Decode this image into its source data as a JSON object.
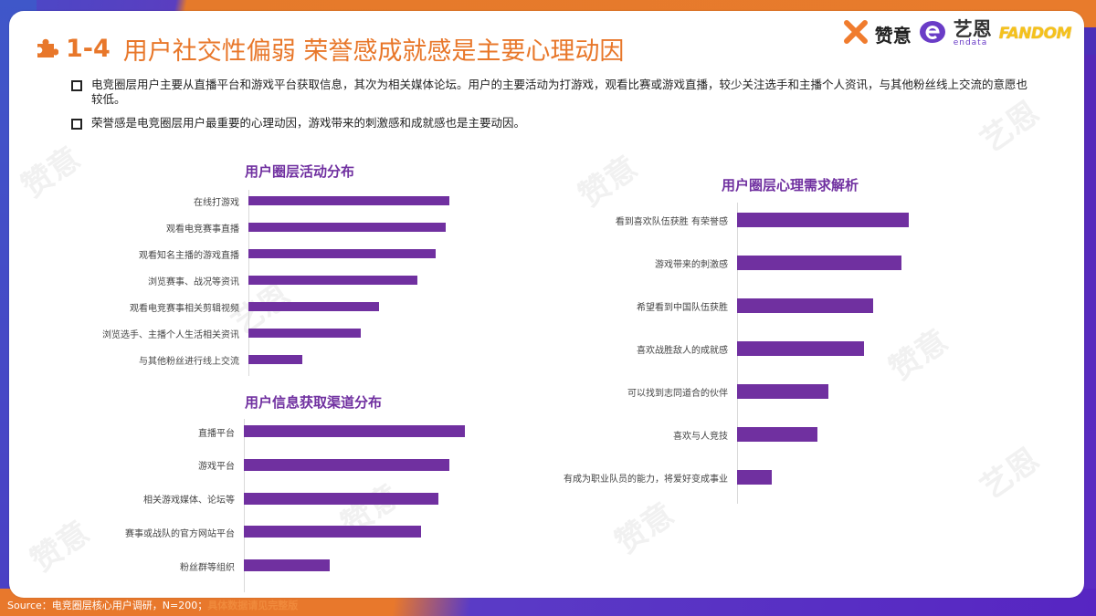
{
  "header": {
    "section_number": "1-4",
    "title": "用户社交性偏弱 荣誉感成就感是主要心理动因",
    "logos": {
      "zanyi": "赞意",
      "yisi": "艺恩",
      "yisi_sub": "endata",
      "fandom": "FANDOM"
    }
  },
  "bullets": [
    "电竞圈层用户主要从直播平台和游戏平台获取信息，其次为相关媒体论坛。用户的主要活动为打游戏，观看比赛或游戏直播，较少关注选手和主播个人资讯，与其他粉丝线上交流的意愿也较低。",
    "荣誉感是电竞圈层用户最重要的心理动因，游戏带来的刺激感和成就感也是主要动因。"
  ],
  "footer": {
    "source": "Source：电竞圈层核心用户调研，N=200；",
    "highlight": "具体数据请见完整版"
  },
  "watermarks": [
    "赞意",
    "艺恩"
  ],
  "colors": {
    "accent_orange": "#e8772a",
    "bar_purple": "#7030a0",
    "frame_purple": "#5428b8"
  },
  "chart_data": [
    {
      "type": "bar",
      "orientation": "horizontal",
      "title": "用户圈层活动分布",
      "categories": [
        "在线打游戏",
        "观看电竞赛事直播",
        "观看知名主播的游戏直播",
        "浏览赛事、战况等资讯",
        "观看电竞赛事相关剪辑视频",
        "浏览选手、主播个人生活相关资讯",
        "与其他粉丝进行线上交流"
      ],
      "values": [
        100,
        98,
        93,
        84,
        65,
        56,
        27
      ],
      "value_unit": "relative bar length (no axis shown)",
      "xlabel": "",
      "ylabel": "",
      "grid": false,
      "legend": "none"
    },
    {
      "type": "bar",
      "orientation": "horizontal",
      "title": "用户信息获取渠道分布",
      "categories": [
        "直播平台",
        "游戏平台",
        "相关游戏媒体、论坛等",
        "赛事或战队的官方网站平台",
        "粉丝群等组织"
      ],
      "values": [
        100,
        93,
        88,
        80,
        39
      ],
      "value_unit": "relative bar length (no axis shown)",
      "xlabel": "",
      "ylabel": "",
      "grid": false,
      "legend": "none"
    },
    {
      "type": "bar",
      "orientation": "horizontal",
      "title": "用户圈层心理需求解析",
      "categories": [
        "看到喜欢队伍获胜 有荣誉感",
        "游戏带来的刺激感",
        "希望看到中国队伍获胜",
        "喜欢战胜敌人的成就感",
        "可以找到志同道合的伙伴",
        "喜欢与人竞技",
        "有成为职业队员的能力，将爱好变成事业"
      ],
      "values": [
        100,
        96,
        79,
        74,
        53,
        47,
        20
      ],
      "value_unit": "relative bar length (no axis shown)",
      "xlabel": "",
      "ylabel": "",
      "grid": false,
      "legend": "none"
    }
  ]
}
